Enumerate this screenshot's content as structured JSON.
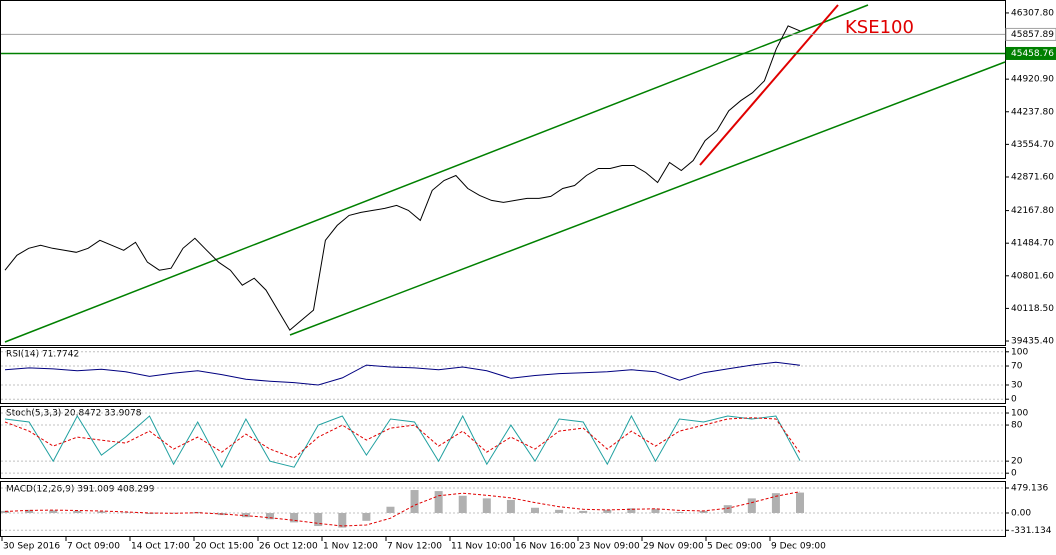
{
  "chart_data": [
    {
      "type": "line",
      "annotation": "KSE100",
      "color": "#000000",
      "values": [
        40918,
        41232,
        41378,
        41441,
        41378,
        41336,
        41294,
        41378,
        41545,
        41441,
        41336,
        41503,
        41086,
        40918,
        40960,
        41378,
        41587,
        41336,
        41086,
        40918,
        40605,
        40751,
        40501,
        40083,
        39665,
        39874,
        40083,
        41545,
        41858,
        42067,
        42130,
        42172,
        42214,
        42276,
        42172,
        41963,
        42590,
        42798,
        42903,
        42631,
        42485,
        42381,
        42339,
        42381,
        42422,
        42422,
        42464,
        42631,
        42694,
        42903,
        43049,
        43049,
        43112,
        43112,
        42966,
        42757,
        43174,
        43007,
        43216,
        43634,
        43843,
        44261,
        44470,
        44637,
        44887,
        45556,
        46036,
        45932
      ],
      "ylim": [
        39352,
        46558
      ],
      "yticks": [
        {
          "value": 46307.8,
          "label": "46307.80"
        },
        {
          "value": 44920.9,
          "label": "44920.90"
        },
        {
          "value": 44237.8,
          "label": "44237.80"
        },
        {
          "value": 43554.7,
          "label": "43554.70"
        },
        {
          "value": 42871.6,
          "label": "42871.60"
        },
        {
          "value": 42167.8,
          "label": "42167.80"
        },
        {
          "value": 41484.7,
          "label": "41484.70"
        },
        {
          "value": 40801.6,
          "label": "40801.60"
        },
        {
          "value": 40118.5,
          "label": "40118.50"
        },
        {
          "value": 39435.4,
          "label": "39435.40"
        }
      ],
      "hlines": [
        {
          "value": 45857.89,
          "color": "#a0a0a0"
        },
        {
          "value": 45458.76,
          "color": "#008000"
        }
      ]
    },
    {
      "type": "line",
      "title": "RSI(14) 71.7742",
      "ylim": [
        -8,
        108
      ],
      "yticks": [
        100,
        70,
        30,
        0
      ],
      "series": [
        {
          "color": "#000080",
          "values": [
            62,
            66,
            64,
            60,
            63,
            58,
            48,
            55,
            60,
            52,
            42,
            38,
            35,
            30,
            45,
            72,
            68,
            66,
            62,
            68,
            60,
            44,
            50,
            54,
            56,
            58,
            62,
            58,
            40,
            56,
            64,
            72,
            78,
            71.7742
          ]
        }
      ]
    },
    {
      "type": "line",
      "title": "Stoch(5,3,3) 20.8472 33.9078",
      "ylim": [
        -8,
        110
      ],
      "yticks": [
        100,
        80,
        20,
        0
      ],
      "series": [
        {
          "color": "#20a0a0",
          "values": [
            90,
            85,
            20,
            95,
            30,
            60,
            95,
            15,
            85,
            10,
            90,
            20,
            10,
            80,
            95,
            30,
            90,
            85,
            20,
            95,
            15,
            80,
            20,
            90,
            85,
            15,
            95,
            20,
            90,
            85,
            95,
            90,
            95,
            20.8472
          ]
        },
        {
          "color": "#e00000",
          "dashed": true,
          "values": [
            85,
            70,
            45,
            60,
            55,
            50,
            70,
            40,
            60,
            35,
            65,
            40,
            25,
            60,
            80,
            55,
            75,
            80,
            45,
            70,
            35,
            60,
            40,
            70,
            75,
            40,
            70,
            45,
            70,
            80,
            90,
            92,
            90,
            33.9078
          ]
        }
      ]
    },
    {
      "type": "bar",
      "title": "MACD(12,26,9) 391.009 408.299",
      "ylim": [
        -441,
        594
      ],
      "yticks": [
        479.136,
        {
          "value": 0,
          "label": "0.00"
        },
        -331.134
      ],
      "series": [
        {
          "type": "bar",
          "color": "#b0b0b0",
          "values": [
            40,
            60,
            50,
            40,
            30,
            10,
            -20,
            -10,
            20,
            -40,
            -80,
            -120,
            -180,
            -250,
            -280,
            -150,
            120,
            440,
            420,
            330,
            280,
            250,
            100,
            60,
            40,
            60,
            90,
            80,
            20,
            40,
            150,
            280,
            380,
            391.009
          ]
        },
        {
          "type": "line",
          "color": "#e00000",
          "dashed": true,
          "values": [
            30,
            50,
            55,
            48,
            38,
            20,
            0,
            -5,
            5,
            -20,
            -50,
            -90,
            -140,
            -200,
            -250,
            -230,
            -100,
            150,
            330,
            380,
            340,
            290,
            200,
            120,
            70,
            60,
            70,
            80,
            50,
            40,
            90,
            200,
            320,
            408.299
          ]
        }
      ]
    }
  ],
  "time_axis": [
    "30 Sep 2016",
    "7 Oct 09:00",
    "14 Oct 17:00",
    "20 Oct 15:00",
    "26 Oct 12:00",
    "1 Nov 12:00",
    "7 Nov 12:00",
    "11 Nov 10:00",
    "16 Nov 16:00",
    "23 Nov 09:00",
    "29 Nov 09:00",
    "5 Dec 09:00",
    "9 Dec 09:00"
  ]
}
